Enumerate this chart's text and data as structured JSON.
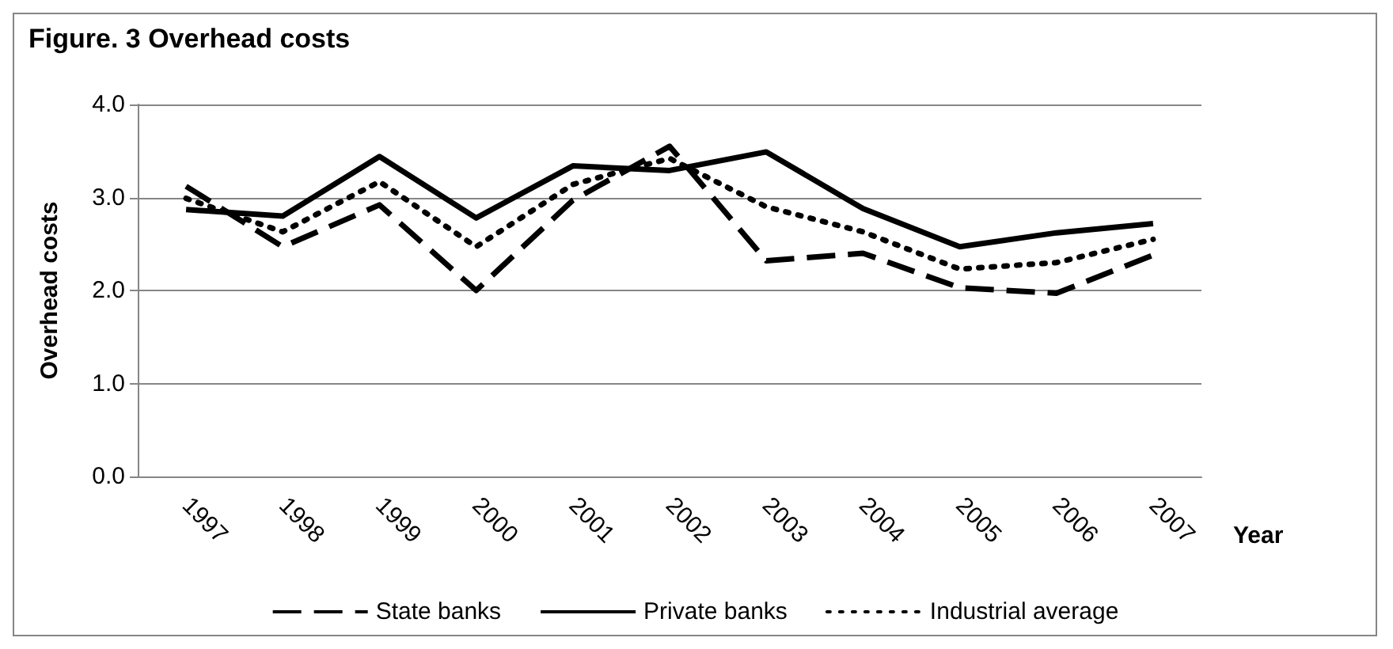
{
  "chart_data": {
    "type": "line",
    "title": "Figure. 3 Overhead costs",
    "ylabel": "Overhead costs",
    "xlabel": "Year",
    "categories": [
      "1997",
      "1998",
      "1999",
      "2000",
      "2001",
      "2002",
      "2003",
      "2004",
      "2005",
      "2006",
      "2007"
    ],
    "series": [
      {
        "name": "State banks",
        "color": "#000000",
        "line_style": "dashed",
        "values": [
          3.12,
          2.47,
          2.92,
          2.0,
          2.97,
          3.55,
          2.32,
          2.4,
          2.03,
          1.97,
          2.38
        ]
      },
      {
        "name": "Private banks",
        "color": "#000000",
        "line_style": "solid",
        "values": [
          2.87,
          2.8,
          3.44,
          2.78,
          3.34,
          3.29,
          3.49,
          2.88,
          2.47,
          2.62,
          2.72
        ]
      },
      {
        "name": "Industrial average",
        "color": "#000000",
        "line_style": "dotted",
        "values": [
          2.99,
          2.63,
          3.17,
          2.47,
          3.14,
          3.42,
          2.9,
          2.63,
          2.23,
          2.3,
          2.55
        ]
      }
    ],
    "ylim": [
      0,
      4
    ],
    "yticks": [
      {
        "value": 0,
        "label": "0.0"
      },
      {
        "value": 1,
        "label": "1.0"
      },
      {
        "value": 2,
        "label": "2.0"
      },
      {
        "value": 3,
        "label": "3.0"
      },
      {
        "value": 4,
        "label": "4.0"
      }
    ],
    "grid": "y",
    "legend": "bottom",
    "marker": "none"
  }
}
